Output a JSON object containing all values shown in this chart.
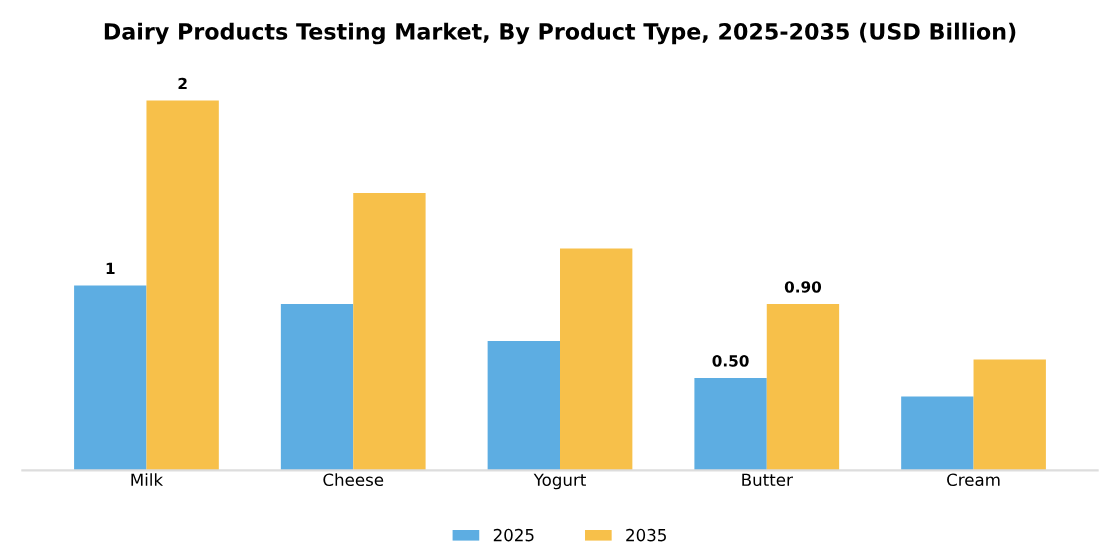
{
  "chart_data": {
    "type": "bar",
    "title": "Dairy Products Testing Market, By Product Type, 2025-2035 (USD Billion)",
    "categories": [
      "Milk",
      "Cheese",
      "Yogurt",
      "Butter",
      "Cream"
    ],
    "series": [
      {
        "name": "2025",
        "color": "#5dade2",
        "values": [
          1,
          0.9,
          0.7,
          0.5,
          0.4
        ],
        "value_labels": [
          "1",
          null,
          null,
          "0.50",
          null
        ]
      },
      {
        "name": "2035",
        "color": "#f7c04a",
        "values": [
          2,
          1.5,
          1.2,
          0.9,
          0.6
        ],
        "value_labels": [
          "2",
          null,
          null,
          "0.90",
          null
        ]
      }
    ],
    "legend": "bottom",
    "grid": false
  }
}
